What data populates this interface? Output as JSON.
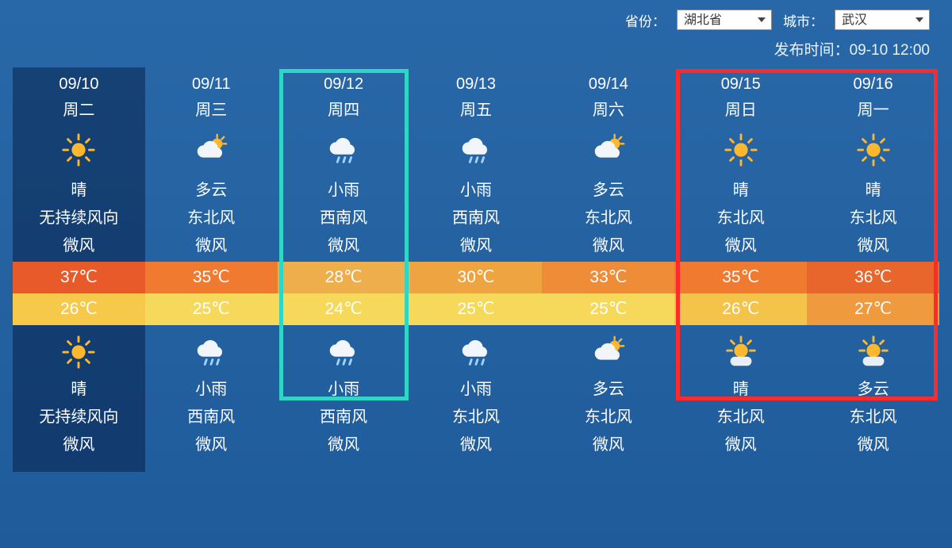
{
  "selectors": {
    "province_label": "省份：",
    "province_value": "湖北省",
    "city_label": "城市：",
    "city_value": "武汉"
  },
  "publish": {
    "label": "发布时间：",
    "value": "09-10 12:00"
  },
  "temp_high_colors": [
    "#e85a2a",
    "#ef7a30",
    "#efae4c",
    "#efa442",
    "#ef8c38",
    "#ef7a30",
    "#e8662c"
  ],
  "temp_low_colors": [
    "#f6c94a",
    "#f6d95a",
    "#f6d95a",
    "#f6d95a",
    "#f6d95a",
    "#f3c34a",
    "#ef9a3e"
  ],
  "highlight": {
    "teal_index": 2,
    "red_start": 5,
    "red_end": 6
  },
  "days": [
    {
      "date": "09/10",
      "dow": "周二",
      "day": {
        "icon": "sun",
        "cond": "晴",
        "wind_dir": "无持续风向",
        "wind_lvl": "微风"
      },
      "high": "37℃",
      "low": "26℃",
      "night": {
        "icon": "sun",
        "cond": "晴",
        "wind_dir": "无持续风向",
        "wind_lvl": "微风"
      },
      "first": true
    },
    {
      "date": "09/11",
      "dow": "周三",
      "day": {
        "icon": "cloud-sun",
        "cond": "多云",
        "wind_dir": "东北风",
        "wind_lvl": "微风"
      },
      "high": "35℃",
      "low": "25℃",
      "night": {
        "icon": "rain",
        "cond": "小雨",
        "wind_dir": "西南风",
        "wind_lvl": "微风"
      }
    },
    {
      "date": "09/12",
      "dow": "周四",
      "day": {
        "icon": "rain",
        "cond": "小雨",
        "wind_dir": "西南风",
        "wind_lvl": "微风"
      },
      "high": "28℃",
      "low": "24℃",
      "night": {
        "icon": "rain",
        "cond": "小雨",
        "wind_dir": "西南风",
        "wind_lvl": "微风"
      }
    },
    {
      "date": "09/13",
      "dow": "周五",
      "day": {
        "icon": "rain",
        "cond": "小雨",
        "wind_dir": "西南风",
        "wind_lvl": "微风"
      },
      "high": "30℃",
      "low": "25℃",
      "night": {
        "icon": "rain",
        "cond": "小雨",
        "wind_dir": "东北风",
        "wind_lvl": "微风"
      }
    },
    {
      "date": "09/14",
      "dow": "周六",
      "day": {
        "icon": "cloud-sun",
        "cond": "多云",
        "wind_dir": "东北风",
        "wind_lvl": "微风"
      },
      "high": "33℃",
      "low": "25℃",
      "night": {
        "icon": "cloud-sun",
        "cond": "多云",
        "wind_dir": "东北风",
        "wind_lvl": "微风"
      }
    },
    {
      "date": "09/15",
      "dow": "周日",
      "day": {
        "icon": "sun",
        "cond": "晴",
        "wind_dir": "东北风",
        "wind_lvl": "微风"
      },
      "high": "35℃",
      "low": "26℃",
      "night": {
        "icon": "sun-haze",
        "cond": "晴",
        "wind_dir": "东北风",
        "wind_lvl": "微风"
      }
    },
    {
      "date": "09/16",
      "dow": "周一",
      "day": {
        "icon": "sun",
        "cond": "晴",
        "wind_dir": "东北风",
        "wind_lvl": "微风"
      },
      "high": "36℃",
      "low": "27℃",
      "night": {
        "icon": "sun-haze",
        "cond": "多云",
        "wind_dir": "东北风",
        "wind_lvl": "微风"
      }
    }
  ]
}
